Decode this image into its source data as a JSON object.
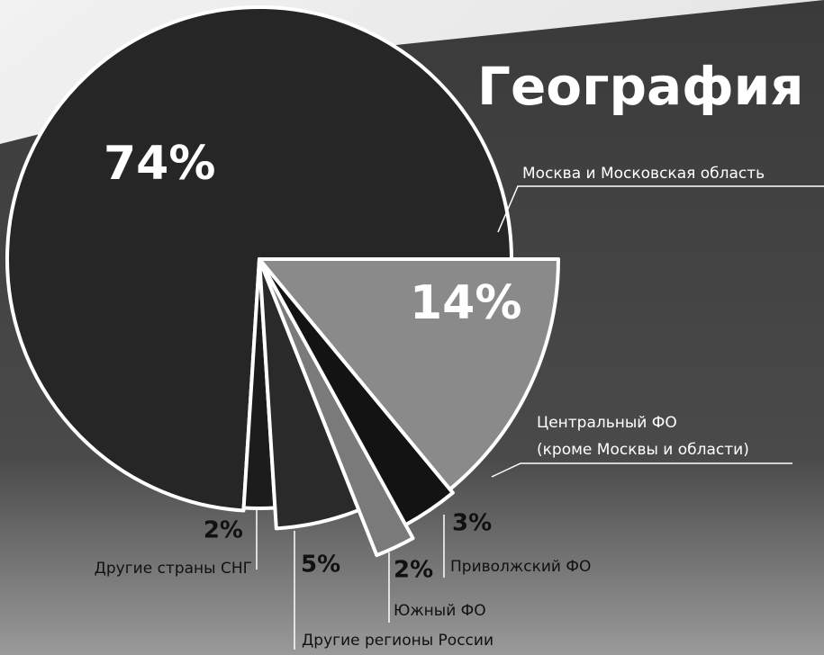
{
  "chart_data": {
    "type": "pie",
    "title": "География",
    "categories": [
      "Москва и Московская область",
      "Другие страны СНГ",
      "Другие регионы России",
      "Южный ФО",
      "Приволжский ФО",
      "Центральный ФО\n(кроме Москвы и области)"
    ],
    "values": [
      74,
      2,
      5,
      2,
      3,
      14
    ],
    "value_labels": [
      "74%",
      "2%",
      "5%",
      "2%",
      "3%",
      "14%"
    ],
    "colors": [
      "#262626",
      "#1c1c1c",
      "#2a2a2a",
      "#7a7a7a",
      "#131313",
      "#8a8a8a"
    ]
  }
}
